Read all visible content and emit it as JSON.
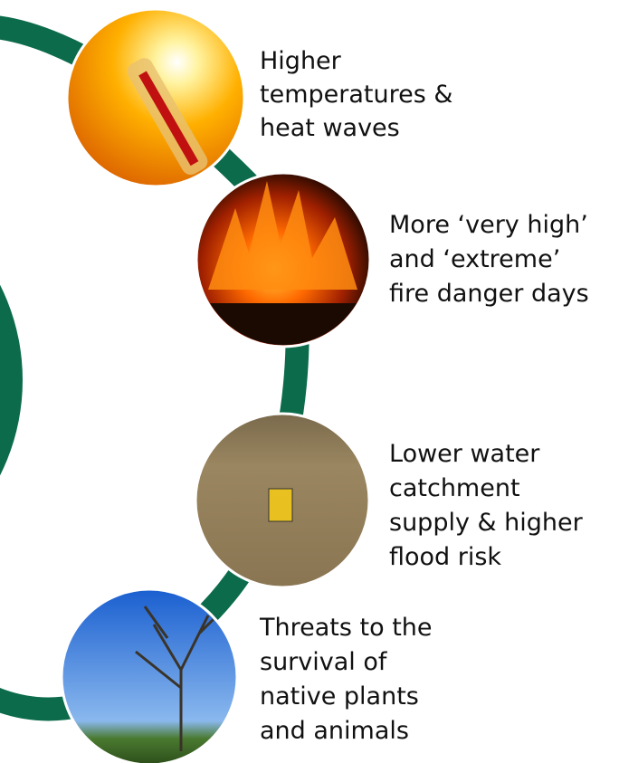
{
  "items": [
    {
      "lines": [
        "Higher",
        "temperatures &",
        "heat waves"
      ]
    },
    {
      "lines": [
        "More ‘very high’",
        "and ‘extreme’",
        "fire danger days"
      ]
    },
    {
      "lines": [
        "Lower water",
        "catchment",
        "supply & higher",
        "flood risk"
      ]
    },
    {
      "lines": [
        "Threats to the",
        "survival of",
        "native plants",
        "and animals"
      ]
    }
  ]
}
